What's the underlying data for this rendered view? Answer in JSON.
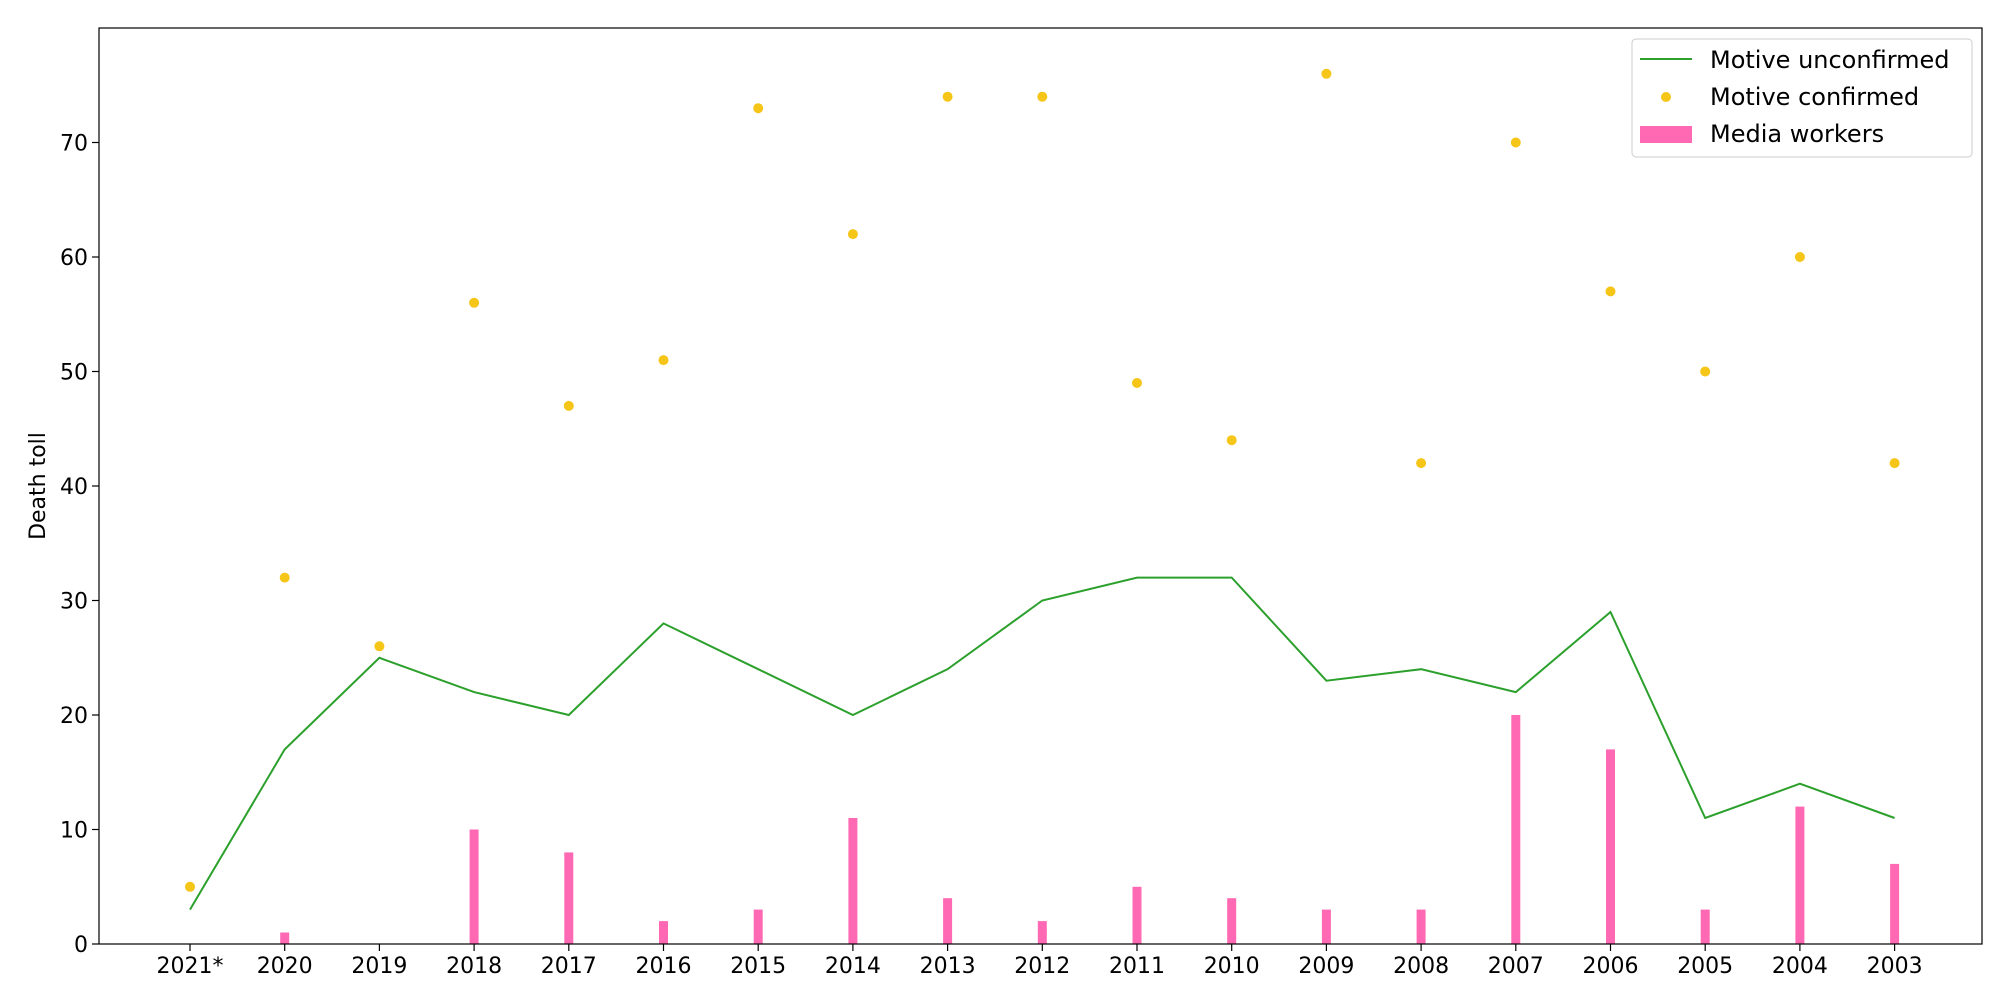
{
  "chart_data": {
    "type": "bar",
    "categories": [
      "2021*",
      "2020",
      "2019",
      "2018",
      "2017",
      "2016",
      "2015",
      "2014",
      "2013",
      "2012",
      "2011",
      "2010",
      "2009",
      "2008",
      "2007",
      "2006",
      "2005",
      "2004",
      "2003"
    ],
    "series": [
      {
        "name": "Motive unconfirmed",
        "type": "line",
        "color": "#2ca02c",
        "values": [
          3,
          17,
          25,
          22,
          20,
          28,
          24,
          20,
          24,
          30,
          32,
          32,
          23,
          24,
          22,
          29,
          11,
          14,
          11
        ]
      },
      {
        "name": "Motive confirmed",
        "type": "scatter",
        "color": "#f5c518",
        "values": [
          5,
          32,
          26,
          56,
          47,
          51,
          73,
          62,
          74,
          74,
          49,
          44,
          76,
          42,
          70,
          57,
          50,
          60,
          42
        ]
      },
      {
        "name": "Media workers",
        "type": "bar",
        "color": "#ff69b4",
        "values": [
          0,
          1,
          0,
          10,
          8,
          2,
          3,
          11,
          4,
          2,
          5,
          4,
          3,
          3,
          20,
          17,
          3,
          12,
          7
        ]
      }
    ],
    "title": "",
    "xlabel": "",
    "ylabel": "Death toll",
    "ylim": [
      0,
      80
    ],
    "yticks": [
      0,
      10,
      20,
      30,
      40,
      50,
      60,
      70
    ],
    "grid": false,
    "legend_position": "top-right"
  }
}
